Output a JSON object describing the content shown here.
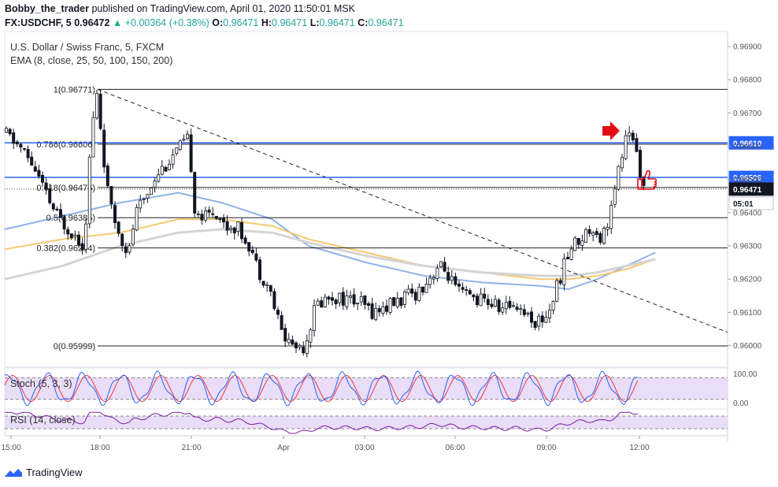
{
  "header": {
    "author": "Bobby_the_trader",
    "published_text": "published on TradingView.com, April 01, 2020 11:50:01 MSK",
    "symbol": "FX:USDCHF, 5",
    "last": "0.96472",
    "change": "▲ +0.00364 (+0.38%)",
    "o_label": "O:",
    "o": "0.96471",
    "h_label": "H:",
    "h": "0.96471",
    "l_label": "L:",
    "l": "0.96471",
    "c_label": "C:",
    "c": "0.96471"
  },
  "legend": {
    "title": "U.S. Dollar / Swiss Franc, 5, FXCM",
    "ema": "EMA (8, close, 25, 50, 100, 150, 200)",
    "stoch": "Stoch (5, 3, 3)",
    "rsi": "RSI (14, close)"
  },
  "footer": {
    "brand": "TradingView"
  },
  "colors": {
    "up": "#131722",
    "down": "#131722",
    "fib": "#222222",
    "hline": "#2962ff",
    "ema_blue": "#8fb3e8",
    "ema_gold": "#f5c970",
    "ema_gray": "#d4d4d4",
    "stoch_k": "#2962ff",
    "stoch_d": "#f23645",
    "rsi": "#7b1fa2",
    "band": "#e9ddf7",
    "arrow": "#e50914"
  },
  "chart_data": {
    "type": "candlestick",
    "symbol": "USDCHF",
    "timeframe": "5",
    "price_axis": {
      "ticks": [
        "0.96900",
        "0.96800",
        "0.96700",
        "0.96600",
        "0.96500",
        "0.96400",
        "0.96300",
        "0.96200",
        "0.96100",
        "0.96000"
      ],
      "ylim": [
        0.95935,
        0.96945
      ]
    },
    "time_axis": {
      "labels": [
        "15:00",
        "18:00",
        "21:00",
        "Apr",
        "03:00",
        "06:00",
        "09:00",
        "12:00"
      ]
    },
    "price_labels": [
      {
        "value": "0.96610",
        "style": "blue"
      },
      {
        "value": "0.96506",
        "style": "blue"
      },
      {
        "value": "0.96471",
        "style": "dark"
      },
      {
        "value": "05:01",
        "style": "white"
      }
    ],
    "horizontal_lines": [
      0.9661,
      0.96506
    ],
    "fib_levels": [
      {
        "label": "1(0.96771)",
        "value": 0.96771
      },
      {
        "label": "0.786(0.96606)",
        "value": 0.96606
      },
      {
        "label": "0.618(0.96476)",
        "value": 0.96476
      },
      {
        "label": "0.5(0.96385)",
        "value": 0.96385
      },
      {
        "label": "0.382(0.96294)",
        "value": 0.96294
      },
      {
        "label": "0(0.95999)",
        "value": 0.95999
      }
    ],
    "trendline": {
      "from": [
        0.0,
        0.96771
      ],
      "to": [
        1.0,
        0.9604
      ]
    },
    "path_close": [
      [
        0.0,
        0.9664
      ],
      [
        0.02,
        0.966
      ],
      [
        0.04,
        0.9654
      ],
      [
        0.06,
        0.9644
      ],
      [
        0.075,
        0.9638
      ],
      [
        0.095,
        0.9634
      ],
      [
        0.11,
        0.963
      ],
      [
        0.12,
        0.9665
      ],
      [
        0.128,
        0.9676
      ],
      [
        0.135,
        0.966
      ],
      [
        0.145,
        0.9642
      ],
      [
        0.16,
        0.9633
      ],
      [
        0.172,
        0.9628
      ],
      [
        0.18,
        0.9639
      ],
      [
        0.195,
        0.9645
      ],
      [
        0.21,
        0.9652
      ],
      [
        0.225,
        0.9655
      ],
      [
        0.24,
        0.9659
      ],
      [
        0.255,
        0.9662
      ],
      [
        0.262,
        0.9642
      ],
      [
        0.275,
        0.9638
      ],
      [
        0.29,
        0.9641
      ],
      [
        0.305,
        0.9636
      ],
      [
        0.32,
        0.9636
      ],
      [
        0.34,
        0.963
      ],
      [
        0.35,
        0.9623
      ],
      [
        0.365,
        0.9618
      ],
      [
        0.375,
        0.961
      ],
      [
        0.385,
        0.9603
      ],
      [
        0.4,
        0.96
      ],
      [
        0.415,
        0.96
      ],
      [
        0.43,
        0.9612
      ],
      [
        0.45,
        0.9615
      ],
      [
        0.47,
        0.9614
      ],
      [
        0.49,
        0.9613
      ],
      [
        0.51,
        0.961
      ],
      [
        0.53,
        0.9612
      ],
      [
        0.55,
        0.9614
      ],
      [
        0.57,
        0.9616
      ],
      [
        0.59,
        0.9621
      ],
      [
        0.6,
        0.9624
      ],
      [
        0.615,
        0.9621
      ],
      [
        0.625,
        0.9616
      ],
      [
        0.64,
        0.9615
      ],
      [
        0.655,
        0.9614
      ],
      [
        0.67,
        0.9613
      ],
      [
        0.69,
        0.9611
      ],
      [
        0.705,
        0.9613
      ],
      [
        0.72,
        0.961
      ],
      [
        0.735,
        0.9607
      ],
      [
        0.75,
        0.9609
      ],
      [
        0.76,
        0.9615
      ],
      [
        0.775,
        0.9625
      ],
      [
        0.785,
        0.963
      ],
      [
        0.8,
        0.9633
      ],
      [
        0.815,
        0.9636
      ],
      [
        0.825,
        0.9632
      ],
      [
        0.835,
        0.9638
      ],
      [
        0.845,
        0.9647
      ],
      [
        0.852,
        0.9656
      ],
      [
        0.858,
        0.9661
      ],
      [
        0.864,
        0.9665
      ],
      [
        0.87,
        0.966
      ],
      [
        0.877,
        0.9656
      ],
      [
        0.883,
        0.96471
      ]
    ],
    "ema_series": [
      {
        "color_key": "ema_blue",
        "points": [
          [
            0.0,
            0.9635
          ],
          [
            0.08,
            0.9639
          ],
          [
            0.16,
            0.9643
          ],
          [
            0.24,
            0.9646
          ],
          [
            0.3,
            0.9643
          ],
          [
            0.37,
            0.9638
          ],
          [
            0.42,
            0.963
          ],
          [
            0.5,
            0.9625
          ],
          [
            0.58,
            0.9621
          ],
          [
            0.66,
            0.9619
          ],
          [
            0.74,
            0.9618
          ],
          [
            0.78,
            0.9617
          ],
          [
            0.82,
            0.962
          ],
          [
            0.86,
            0.9624
          ],
          [
            0.9,
            0.9628
          ]
        ]
      },
      {
        "color_key": "ema_gold",
        "points": [
          [
            0.0,
            0.9629
          ],
          [
            0.08,
            0.9632
          ],
          [
            0.16,
            0.9634
          ],
          [
            0.24,
            0.9638
          ],
          [
            0.3,
            0.9638
          ],
          [
            0.37,
            0.9636
          ],
          [
            0.42,
            0.9632
          ],
          [
            0.5,
            0.9628
          ],
          [
            0.58,
            0.9624
          ],
          [
            0.66,
            0.9622
          ],
          [
            0.74,
            0.962
          ],
          [
            0.78,
            0.962
          ],
          [
            0.82,
            0.9621
          ],
          [
            0.86,
            0.9623
          ],
          [
            0.9,
            0.9626
          ]
        ]
      },
      {
        "color_key": "ema_gray",
        "points": [
          [
            0.0,
            0.962
          ],
          [
            0.08,
            0.9624
          ],
          [
            0.16,
            0.963
          ],
          [
            0.24,
            0.9634
          ],
          [
            0.3,
            0.9635
          ],
          [
            0.37,
            0.9634
          ],
          [
            0.42,
            0.9631
          ],
          [
            0.5,
            0.9627
          ],
          [
            0.58,
            0.9624
          ],
          [
            0.66,
            0.9622
          ],
          [
            0.74,
            0.9621
          ],
          [
            0.78,
            0.9621
          ],
          [
            0.82,
            0.9622
          ],
          [
            0.86,
            0.9624
          ],
          [
            0.9,
            0.9626
          ]
        ]
      }
    ],
    "stoch": {
      "axis_ticks": [
        "100.00",
        "0.00"
      ],
      "band": [
        20,
        80
      ]
    },
    "rsi": {
      "band": [
        30,
        70
      ]
    }
  }
}
